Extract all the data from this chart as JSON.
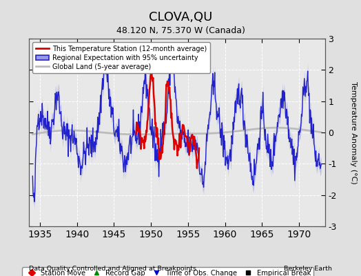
{
  "title": "CLOVA,QU",
  "subtitle": "48.120 N, 75.370 W (Canada)",
  "ylabel": "Temperature Anomaly (°C)",
  "xlabel_left": "Data Quality Controlled and Aligned at Breakpoints",
  "xlabel_right": "Berkeley Earth",
  "ylim": [
    -3,
    3
  ],
  "xlim": [
    1933.5,
    1973.5
  ],
  "yticks": [
    -3,
    -2,
    -1,
    0,
    1,
    2,
    3
  ],
  "xticks": [
    1935,
    1940,
    1945,
    1950,
    1955,
    1960,
    1965,
    1970
  ],
  "background_color": "#e0e0e0",
  "plot_bg_color": "#e8e8e8",
  "regional_color": "#2222cc",
  "regional_fill_color": "#9999dd",
  "station_color": "#dd0000",
  "global_color": "#bbbbbb",
  "legend_items": [
    {
      "label": "This Temperature Station (12-month average)",
      "color": "#dd0000"
    },
    {
      "label": "Regional Expectation with 95% uncertainty",
      "color": "#2222cc"
    },
    {
      "label": "Global Land (5-year average)",
      "color": "#bbbbbb"
    }
  ],
  "bottom_legend": [
    {
      "label": "Station Move",
      "color": "#dd0000",
      "marker": "D"
    },
    {
      "label": "Record Gap",
      "color": "#008800",
      "marker": "^"
    },
    {
      "label": "Time of Obs. Change",
      "color": "#0000cc",
      "marker": "v"
    },
    {
      "label": "Empirical Break",
      "color": "#000000",
      "marker": "s"
    }
  ]
}
